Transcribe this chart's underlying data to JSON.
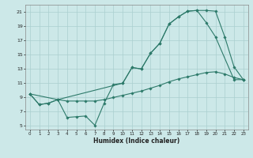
{
  "xlabel": "Humidex (Indice chaleur)",
  "bg_color": "#cce8e8",
  "grid_color": "#aacfcf",
  "line_color": "#2d7a6a",
  "xlim": [
    -0.5,
    23.5
  ],
  "ylim": [
    4.5,
    22
  ],
  "xticks": [
    0,
    1,
    2,
    3,
    4,
    5,
    6,
    7,
    8,
    9,
    10,
    11,
    12,
    13,
    14,
    15,
    16,
    17,
    18,
    19,
    20,
    21,
    22,
    23
  ],
  "yticks": [
    5,
    7,
    9,
    11,
    13,
    15,
    17,
    19,
    21
  ],
  "curve1_x": [
    0,
    1,
    2,
    3,
    4,
    5,
    6,
    7,
    8,
    9,
    10,
    11,
    12,
    13,
    14,
    15,
    16,
    17,
    18,
    19,
    20,
    21,
    22,
    23
  ],
  "curve1_y": [
    9.5,
    8.0,
    8.2,
    8.7,
    6.2,
    6.3,
    6.4,
    5.1,
    8.2,
    10.8,
    11.0,
    13.2,
    13.0,
    15.2,
    16.6,
    19.3,
    20.3,
    21.1,
    21.2,
    21.2,
    21.1,
    17.5,
    13.3,
    11.5
  ],
  "curve2_x": [
    0,
    1,
    2,
    3,
    4,
    5,
    6,
    7,
    8,
    9,
    10,
    11,
    12,
    13,
    14,
    15,
    16,
    17,
    18,
    19,
    20,
    21,
    22,
    23
  ],
  "curve2_y": [
    9.5,
    8.0,
    8.2,
    8.7,
    8.5,
    8.5,
    8.5,
    8.5,
    8.7,
    9.0,
    9.3,
    9.6,
    9.9,
    10.3,
    10.7,
    11.2,
    11.6,
    11.9,
    12.2,
    12.5,
    12.6,
    12.3,
    11.8,
    11.5
  ],
  "curve3_x": [
    0,
    3,
    10,
    11,
    12,
    13,
    14,
    15,
    16,
    17,
    18,
    19,
    20,
    22,
    23
  ],
  "curve3_y": [
    9.5,
    8.7,
    11.0,
    13.2,
    13.0,
    15.2,
    16.6,
    19.3,
    20.3,
    21.1,
    21.2,
    19.5,
    17.5,
    11.5,
    11.5
  ]
}
